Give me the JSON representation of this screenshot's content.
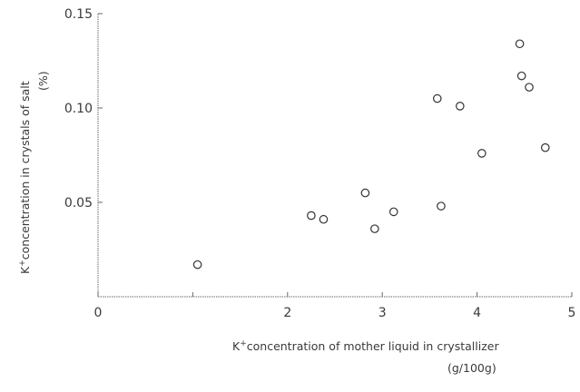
{
  "chart_data": {
    "type": "scatter",
    "title": "",
    "xlabel": {
      "line1_text": "concentration of mother liquid in crystallizer",
      "line2": "(g/100g)"
    },
    "ylabel": {
      "line1_text": "concentration in crystals of salt",
      "line2": "(%)"
    },
    "ion": {
      "base": "K",
      "sup": "+"
    },
    "xlim": [
      0,
      5
    ],
    "ylim": [
      0,
      0.15
    ],
    "xticks": [
      {
        "value": 0,
        "label": "0"
      },
      {
        "value": 2,
        "label": "2"
      },
      {
        "value": 3,
        "label": "3"
      },
      {
        "value": 4,
        "label": "4"
      },
      {
        "value": 5,
        "label": "5"
      }
    ],
    "xticks_minor": [
      1
    ],
    "yticks": [
      {
        "value": 0.05,
        "label": "0.05"
      },
      {
        "value": 0.1,
        "label": "0.10"
      },
      {
        "value": 0.15,
        "label": "0.15"
      }
    ],
    "grid": false,
    "marker": "hollow-circle",
    "points": [
      {
        "x": 1.05,
        "y": 0.017
      },
      {
        "x": 2.25,
        "y": 0.043
      },
      {
        "x": 2.38,
        "y": 0.041
      },
      {
        "x": 2.82,
        "y": 0.055
      },
      {
        "x": 2.92,
        "y": 0.036
      },
      {
        "x": 3.12,
        "y": 0.045
      },
      {
        "x": 3.58,
        "y": 0.105
      },
      {
        "x": 3.62,
        "y": 0.048
      },
      {
        "x": 3.82,
        "y": 0.101
      },
      {
        "x": 4.05,
        "y": 0.076
      },
      {
        "x": 4.45,
        "y": 0.134
      },
      {
        "x": 4.47,
        "y": 0.117
      },
      {
        "x": 4.55,
        "y": 0.111
      },
      {
        "x": 4.72,
        "y": 0.079
      }
    ]
  }
}
